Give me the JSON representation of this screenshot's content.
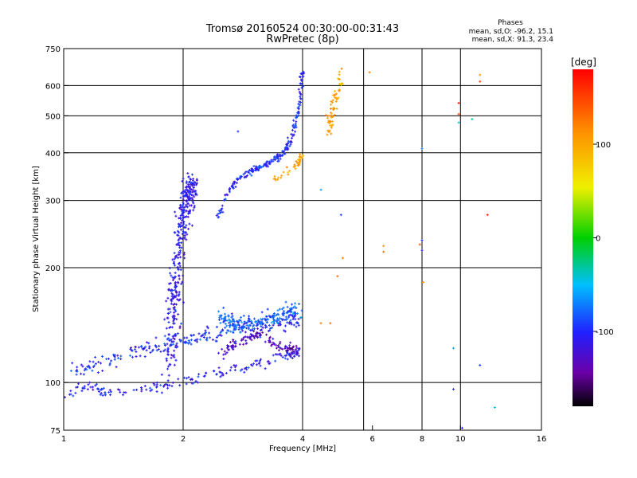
{
  "chart_data": {
    "type": "scatter",
    "title": "Tromsø 20160524 00:30:00-00:31:43",
    "subtitle": "RwPretec (8p)",
    "xlabel": "Frequency [MHz]",
    "ylabel": "Stationary phase Virtual Height [km]",
    "x_scale": "log",
    "y_scale": "log",
    "xlim": [
      1,
      16
    ],
    "ylim": [
      75,
      750
    ],
    "x_ticks": [
      {
        "value": 1,
        "label": "1"
      },
      {
        "value": 2,
        "label": "2"
      },
      {
        "value": 4,
        "label": "4"
      },
      {
        "value": 6,
        "label": "6"
      },
      {
        "value": 8,
        "label": "8"
      },
      {
        "value": 10,
        "label": "10"
      },
      {
        "value": 16,
        "label": "16"
      }
    ],
    "x_gridlines": [
      2,
      4,
      5.7,
      8,
      10
    ],
    "y_ticks": [
      {
        "value": 75,
        "label": "75"
      },
      {
        "value": 100,
        "label": "100"
      },
      {
        "value": 200,
        "label": "200"
      },
      {
        "value": 300,
        "label": "300"
      },
      {
        "value": 400,
        "label": "400"
      },
      {
        "value": 500,
        "label": "500"
      },
      {
        "value": 600,
        "label": "600"
      },
      {
        "value": 750,
        "label": "750"
      }
    ],
    "y_gridlines": [
      100,
      200,
      300,
      400,
      500,
      600
    ],
    "grid": true,
    "phases_header": "Phases",
    "phase_stats": [
      "mean, sd,O: -96.2, 15.1",
      "mean, sd,X:  91.3, 23.4"
    ],
    "colorbar": {
      "label": "[deg]",
      "range": [
        -180,
        180
      ],
      "ticks": [
        {
          "value": 100,
          "label": "100"
        },
        {
          "value": 0,
          "label": "0"
        },
        {
          "value": -100,
          "label": "-100"
        }
      ]
    },
    "traces": [
      {
        "x": [
          1.0,
          1.05,
          1.1,
          1.15,
          1.2,
          1.25,
          1.3,
          1.4,
          1.5,
          1.6,
          1.7,
          1.8,
          1.9,
          2.0,
          2.2,
          2.4,
          2.6,
          2.8,
          3.0,
          3.2,
          3.4,
          3.6,
          3.8,
          3.95
        ],
        "y": [
          93,
          95,
          97,
          98,
          96,
          95,
          94,
          94,
          95,
          96,
          97,
          98,
          99,
          101,
          103,
          105,
          107,
          109,
          111,
          113,
          115,
          117,
          119,
          121
        ],
        "phase": -105,
        "spread": 0.03,
        "count": 170
      },
      {
        "x": [
          1.05,
          1.15,
          1.25,
          1.35,
          1.5,
          1.65,
          1.8,
          1.95,
          2.1,
          2.3,
          2.5,
          2.8,
          3.1,
          3.4,
          3.7,
          3.95
        ],
        "y": [
          108,
          110,
          113,
          116,
          120,
          124,
          126,
          128,
          130,
          133,
          135,
          138,
          140,
          142,
          145,
          148
        ],
        "phase": -100,
        "spread": 0.05,
        "count": 230
      },
      {
        "x": [
          1.85,
          1.88,
          1.92,
          1.96,
          2.0,
          2.04,
          2.08,
          2.12
        ],
        "y": [
          110,
          140,
          180,
          230,
          270,
          300,
          320,
          335
        ],
        "phase": -110,
        "spread": 0.07,
        "count": 360
      },
      {
        "x": [
          2.45,
          2.6,
          2.8,
          3.0,
          3.2,
          3.4,
          3.55,
          3.7,
          3.8,
          3.9,
          3.95,
          4.0
        ],
        "y": [
          270,
          320,
          345,
          360,
          370,
          385,
          395,
          420,
          460,
          510,
          570,
          650
        ],
        "phase": -100,
        "spread": 0.02,
        "count": 220
      },
      {
        "x": [
          2.5,
          2.6,
          2.7,
          2.9,
          3.1,
          3.3,
          3.5,
          3.7,
          3.9
        ],
        "y": [
          150,
          145,
          140,
          143,
          145,
          148,
          150,
          152,
          155
        ],
        "phase": -80,
        "spread": 0.05,
        "count": 200
      },
      {
        "x": [
          2.5,
          2.7,
          2.9,
          3.1,
          3.3,
          3.5,
          3.7,
          3.9
        ],
        "y": [
          120,
          125,
          130,
          133,
          128,
          125,
          122,
          120
        ],
        "phase": -130,
        "spread": 0.03,
        "count": 130
      },
      {
        "x": [
          3.4,
          3.55,
          3.7,
          3.85,
          3.95,
          4.0
        ],
        "y": [
          340,
          350,
          360,
          370,
          380,
          395
        ],
        "phase": 100,
        "spread": 0.02,
        "count": 40
      },
      {
        "x": [
          4.55,
          4.65,
          4.75,
          4.85,
          5.0
        ],
        "y": [
          430,
          470,
          500,
          560,
          640
        ],
        "phase": 105,
        "spread": 0.04,
        "count": 60
      }
    ],
    "isolated_points": [
      {
        "x": 2.75,
        "y": 455,
        "phase": -95
      },
      {
        "x": 4.45,
        "y": 320,
        "phase": -60
      },
      {
        "x": 4.45,
        "y": 143,
        "phase": 120
      },
      {
        "x": 4.7,
        "y": 143,
        "phase": 130
      },
      {
        "x": 5.0,
        "y": 275,
        "phase": -90
      },
      {
        "x": 5.05,
        "y": 212,
        "phase": 120
      },
      {
        "x": 4.9,
        "y": 190,
        "phase": 130
      },
      {
        "x": 5.9,
        "y": 650,
        "phase": 120
      },
      {
        "x": 6.4,
        "y": 228,
        "phase": 110
      },
      {
        "x": 6.4,
        "y": 220,
        "phase": 130
      },
      {
        "x": 7.9,
        "y": 230,
        "phase": 140
      },
      {
        "x": 8.0,
        "y": 410,
        "phase": -70
      },
      {
        "x": 8.0,
        "y": 236,
        "phase": -100
      },
      {
        "x": 8.0,
        "y": 222,
        "phase": -110
      },
      {
        "x": 8.05,
        "y": 183,
        "phase": 110
      },
      {
        "x": 9.6,
        "y": 123,
        "phase": -60
      },
      {
        "x": 9.6,
        "y": 96,
        "phase": -100
      },
      {
        "x": 9.9,
        "y": 540,
        "phase": 175
      },
      {
        "x": 9.9,
        "y": 505,
        "phase": 150
      },
      {
        "x": 9.9,
        "y": 480,
        "phase": -40
      },
      {
        "x": 10.1,
        "y": 76,
        "phase": -100
      },
      {
        "x": 10.7,
        "y": 490,
        "phase": -30
      },
      {
        "x": 11.2,
        "y": 640,
        "phase": 110
      },
      {
        "x": 11.2,
        "y": 615,
        "phase": 150
      },
      {
        "x": 11.2,
        "y": 111,
        "phase": -90
      },
      {
        "x": 11.7,
        "y": 275,
        "phase": 160
      },
      {
        "x": 12.2,
        "y": 86,
        "phase": -40
      }
    ]
  }
}
